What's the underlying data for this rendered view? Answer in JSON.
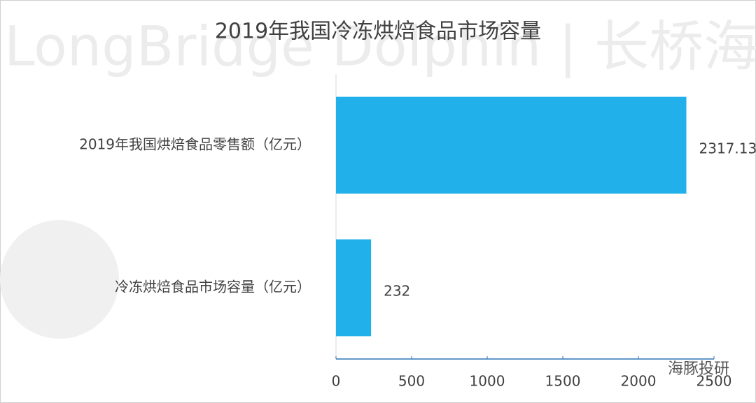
{
  "chart_data": {
    "type": "bar",
    "orientation": "horizontal",
    "title": "2019年我国冷冻烘焙食品市场容量",
    "categories": [
      "2019年我国烘焙食品零售额（亿元）",
      "冷冻烘焙食品市场容量（亿元）"
    ],
    "values": [
      2317.13,
      232
    ],
    "color": "#22b0ea",
    "xlim": [
      0,
      2500
    ],
    "xticks": [
      0,
      500,
      1000,
      1500,
      2000,
      2500
    ],
    "grid": false,
    "annotations": [
      "LongBridge Dolphin | 长桥海豚投研",
      "海豚投研"
    ]
  }
}
